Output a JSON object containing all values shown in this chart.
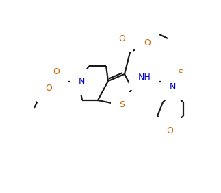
{
  "background_color": "#ffffff",
  "line_color": "#1a1a1a",
  "atom_colors": {
    "O": "#cc6600",
    "N": "#0000cc",
    "S": "#cc6600",
    "H": "#1a1a1a",
    "C": "#1a1a1a"
  },
  "figsize": [
    3.23,
    2.81
  ],
  "dpi": 100
}
